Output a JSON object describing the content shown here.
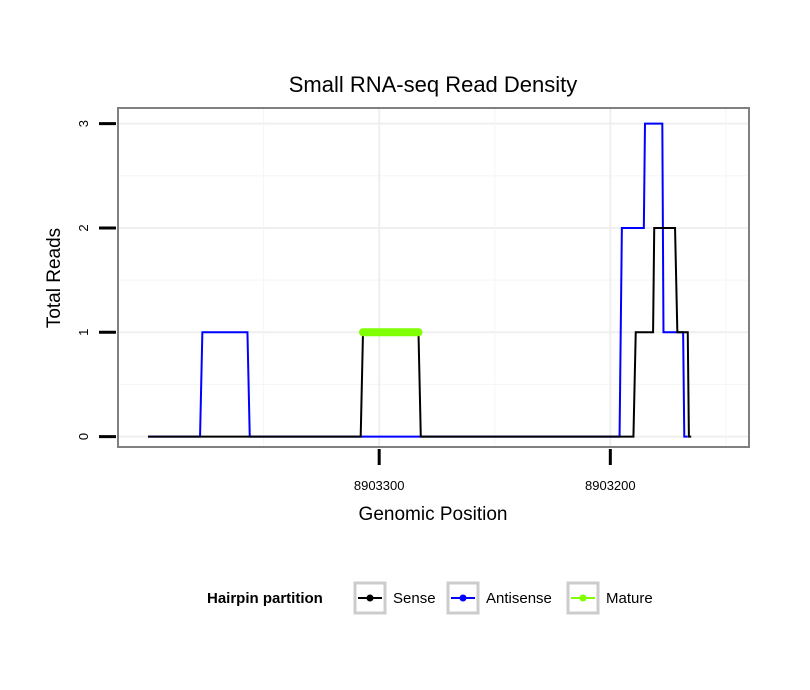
{
  "chart_data": {
    "type": "line",
    "title": "Small RNA-seq Read Density",
    "xlabel": "Genomic Position",
    "ylabel": "Total Reads",
    "x_reversed": true,
    "xlim": [
      8903413,
      8903140
    ],
    "ylim": [
      -0.1,
      3.15
    ],
    "x_ticks": [
      8903300,
      8903200
    ],
    "x_tick_labels": [
      "8903300",
      "8903200"
    ],
    "y_ticks": [
      0,
      1,
      2,
      3
    ],
    "y_tick_labels": [
      "0",
      "1",
      "2",
      "3"
    ],
    "grid": true,
    "legend": {
      "title": "Hairpin partition",
      "position": "bottom",
      "entries": [
        {
          "label": "Sense",
          "color": "#000000"
        },
        {
          "label": "Antisense",
          "color": "#0000ff"
        },
        {
          "label": "Mature",
          "color": "#7fff00"
        }
      ]
    },
    "series": [
      {
        "name": "Antisense",
        "color": "#0000ff",
        "x": [
          8903400,
          8903377.5,
          8903376.5,
          8903357,
          8903356,
          8903308,
          8903307,
          8903283,
          8903282,
          8903196,
          8903195,
          8903185.5,
          8903185,
          8903177.5,
          8903177,
          8903171.5,
          8903171,
          8903168.5,
          8903168,
          8903166.5
        ],
        "y": [
          0,
          0,
          1,
          1,
          0,
          0,
          0,
          0,
          0,
          0,
          2,
          2,
          3,
          3,
          1,
          1,
          1,
          1,
          0,
          0
        ]
      },
      {
        "name": "Sense",
        "color": "#000000",
        "x": [
          8903400,
          8903308,
          8903307,
          8903283,
          8903282,
          8903190,
          8903189,
          8903181.5,
          8903181,
          8903172,
          8903171,
          8903166.5,
          8903166,
          8903165
        ],
        "y": [
          0,
          0,
          1,
          1,
          0,
          0,
          1,
          1,
          2,
          2,
          1,
          1,
          0,
          0
        ]
      },
      {
        "name": "Mature",
        "color": "#7fff00",
        "x": [
          8903307,
          8903283
        ],
        "y": [
          1,
          1
        ]
      }
    ]
  }
}
